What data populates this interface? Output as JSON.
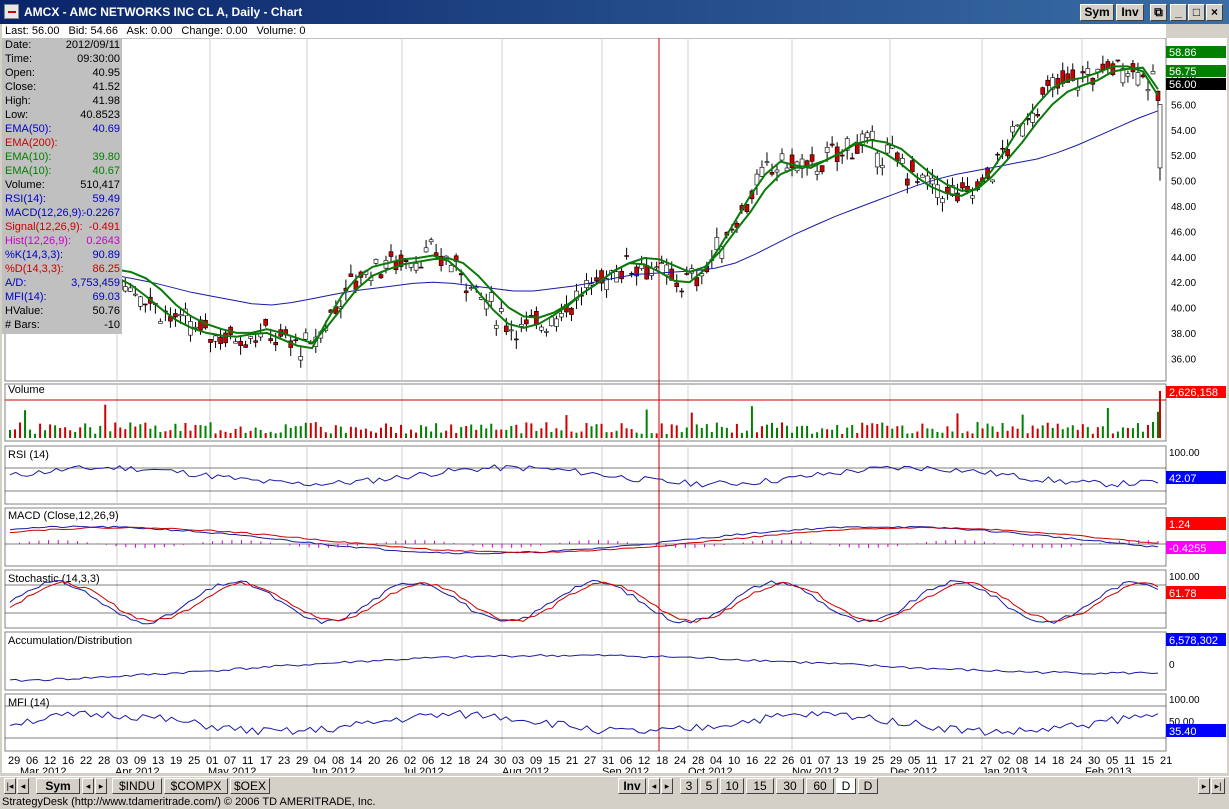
{
  "window": {
    "title": "AMCX - AMC NETWORKS INC CL A, Daily - Chart",
    "sym_button": "Sym",
    "inv_button": "Inv"
  },
  "quote_row": {
    "last": "Last: 56.00",
    "bid": "Bid: 54.66",
    "ask": "Ask: 0.00",
    "change": "Change: 0.00",
    "volume": "Volume: 0"
  },
  "data_panel": [
    {
      "label": "Date:",
      "value": "2012/09/11",
      "color": "#000000"
    },
    {
      "label": "Time:",
      "value": "09:30:00",
      "color": "#000000"
    },
    {
      "label": "Open:",
      "value": "40.95",
      "color": "#000000"
    },
    {
      "label": "Close:",
      "value": "41.52",
      "color": "#000000"
    },
    {
      "label": "High:",
      "value": "41.98",
      "color": "#000000"
    },
    {
      "label": "Low:",
      "value": "40.8523",
      "color": "#000000"
    },
    {
      "label": "EMA(50):",
      "value": "40.69",
      "color": "#0000cc"
    },
    {
      "label": "EMA(200):",
      "value": "",
      "color": "#cc0000"
    },
    {
      "label": "EMA(10):",
      "value": "39.80",
      "color": "#008000"
    },
    {
      "label": "EMA(10):",
      "value": "40.67",
      "color": "#008000"
    },
    {
      "label": "Volume:",
      "value": "510,417",
      "color": "#000000"
    },
    {
      "label": "RSI(14):",
      "value": "59.49",
      "color": "#0000cc"
    },
    {
      "label": "MACD(12,26,9):",
      "value": "-0.2267",
      "color": "#0000cc"
    },
    {
      "label": "Signal(12,26,9):",
      "value": "-0.491",
      "color": "#cc0000"
    },
    {
      "label": "Hist(12,26,9):",
      "value": "0.2643",
      "color": "#cc00cc"
    },
    {
      "label": "%K(14,3,3):",
      "value": "90.89",
      "color": "#0000cc"
    },
    {
      "label": "%D(14,3,3):",
      "value": "86.25",
      "color": "#cc0000"
    },
    {
      "label": "A/D:",
      "value": "3,753,459",
      "color": "#0000cc"
    },
    {
      "label": "MFI(14):",
      "value": "69.03",
      "color": "#0000cc"
    },
    {
      "label": "HValue:",
      "value": "50.76",
      "color": "#000000"
    },
    {
      "label": "# Bars:",
      "value": "-10",
      "color": "#000000"
    }
  ],
  "price_axis": {
    "ticks": [
      "60.00",
      "58.00",
      "56.00",
      "54.00",
      "52.00",
      "50.00",
      "48.00",
      "46.00",
      "44.00",
      "42.00",
      "40.00",
      "38.00",
      "36.00"
    ],
    "badges": [
      {
        "text": "58.86",
        "bg": "#008000"
      },
      {
        "text": "56.75",
        "bg": "#008000"
      },
      {
        "text": "56.00",
        "bg": "#000000"
      }
    ]
  },
  "panels": {
    "volume": {
      "title": "Volume",
      "badge": "2,626,158",
      "badge_bg": "#ff0000"
    },
    "rsi": {
      "title": "RSI (14)",
      "tick_top": "100.00",
      "badge": "42.07",
      "badge_bg": "#0000ff"
    },
    "macd": {
      "title": "MACD (Close,12,26,9)",
      "badge1": "1.24",
      "badge1_bg": "#ff0000",
      "badge2": "-0.4255",
      "badge2_bg": "#ff00ff"
    },
    "stoch": {
      "title": "Stochastic (14,3,3)",
      "tick_top": "100.00",
      "badge": "61.78",
      "badge_bg": "#ff0000"
    },
    "ad": {
      "title": "Accumulation/Distribution",
      "badge": "6,578,302",
      "badge_bg": "#0000ff",
      "tick_zero": "0"
    },
    "mfi": {
      "title": "MFI (14)",
      "tick_top": "100.00",
      "tick_mid": "50.00",
      "badge": "35.40",
      "badge_bg": "#0000ff"
    }
  },
  "date_axis": {
    "days": [
      "29",
      "06",
      "12",
      "16",
      "22",
      "28",
      "03",
      "09",
      "13",
      "19",
      "25",
      "01",
      "07",
      "11",
      "17",
      "23",
      "29",
      "04",
      "08",
      "14",
      "20",
      "26",
      "02",
      "06",
      "12",
      "18",
      "24",
      "30",
      "03",
      "09",
      "15",
      "21",
      "27",
      "31",
      "06",
      "12",
      "18",
      "24",
      "28",
      "04",
      "10",
      "16",
      "22",
      "26",
      "01",
      "07",
      "13",
      "19",
      "25",
      "29",
      "05",
      "11",
      "17",
      "21",
      "27",
      "02",
      "08",
      "14",
      "18",
      "24",
      "30",
      "05",
      "11",
      "15",
      "21"
    ],
    "months": [
      {
        "label": "Mar 2012"
      },
      {
        "label": "Apr 2012"
      },
      {
        "label": "May 2012"
      },
      {
        "label": "Jun 2012"
      },
      {
        "label": "Jul 2012"
      },
      {
        "label": "Aug 2012"
      },
      {
        "label": "Sep 2012"
      },
      {
        "label": "Oct 2012"
      },
      {
        "label": "Nov 2012"
      },
      {
        "label": "Dec 2012"
      },
      {
        "label": "Jan 2013"
      },
      {
        "label": "Feb 2013"
      }
    ]
  },
  "bottom_tabs": {
    "left": [
      "Sym",
      "$INDU",
      "$COMPX",
      "$OEX"
    ],
    "inv": "Inv",
    "periods": [
      "3",
      "5",
      "10",
      "15",
      "30",
      "60",
      "D",
      "D"
    ]
  },
  "statusbar": {
    "text": "StrategyDesk (http://www.tdameritrade.com/) © 2006 TD AMERITRADE, Inc."
  },
  "chart_data": {
    "type": "line",
    "title": "AMCX - AMC NETWORKS INC CL A, Daily",
    "ylim": [
      35,
      61
    ],
    "series": [
      {
        "name": "EMA(50)",
        "values": [
          43.5,
          43.4,
          43.2,
          43.0,
          42.8,
          42.6,
          42.3,
          42.0,
          41.6,
          41.2,
          40.9,
          40.6,
          40.3,
          40.2,
          40.4,
          40.7,
          41.0,
          41.3,
          41.5,
          41.7,
          41.9,
          42.0,
          41.9,
          41.7,
          41.5,
          41.3,
          41.3,
          41.5,
          41.7,
          42.0,
          42.3,
          42.6,
          42.7,
          42.8,
          42.9,
          43.1,
          43.5,
          44.2,
          45.0,
          45.8,
          46.5,
          47.2,
          47.8,
          48.4,
          49.0,
          49.6,
          50.1,
          50.5,
          50.8,
          51.1,
          51.4,
          51.7,
          52.2,
          52.8,
          53.5,
          54.2,
          54.9,
          55.5
        ]
      },
      {
        "name": "EMA(10)",
        "values": [
          44.8,
          44.5,
          44.0,
          43.6,
          43.4,
          43.3,
          43.2,
          43.0,
          42.8,
          42.3,
          41.4,
          40.2,
          39.3,
          38.7,
          38.3,
          38.0,
          38.0,
          38.3,
          38.0,
          37.6,
          37.2,
          38.5,
          40.0,
          41.5,
          42.5,
          43.0,
          43.4,
          43.6,
          43.8,
          43.9,
          43.5,
          42.5,
          41.2,
          40.0,
          39.3,
          39.2,
          39.6,
          40.3,
          41.2,
          42.0,
          42.9,
          43.5,
          43.9,
          43.8,
          43.3,
          42.8,
          43.2,
          44.4,
          46.0,
          47.5,
          49.3,
          50.5,
          51.0,
          51.2,
          51.6,
          52.2,
          52.9,
          53.2,
          53.0,
          52.5,
          51.5,
          50.5,
          49.7,
          49.2,
          49.3,
          50.3,
          51.6,
          53.0,
          54.6,
          56.0,
          57.0,
          57.5,
          57.9,
          58.6,
          58.8,
          58.9,
          57.2
        ]
      },
      {
        "name": "EMA(10) fast",
        "values": [
          44.3,
          44.0,
          43.4,
          43.1,
          42.9,
          42.8,
          42.8,
          42.4,
          41.8,
          40.9,
          39.9,
          39.0,
          38.4,
          38.0,
          37.8,
          37.7,
          37.9,
          38.0,
          37.5,
          37.0,
          36.8,
          39.0,
          41.0,
          42.4,
          43.2,
          43.5,
          43.8,
          43.9,
          44.1,
          43.7,
          42.7,
          41.2,
          39.8,
          38.7,
          38.4,
          38.7,
          39.4,
          40.2,
          41.2,
          42.0,
          42.9,
          43.5,
          43.4,
          42.8,
          42.1,
          42.0,
          43.0,
          44.8,
          46.8,
          48.8,
          50.5,
          51.5,
          51.2,
          51.0,
          51.6,
          52.2,
          53.0,
          52.6,
          52.1,
          51.3,
          50.3,
          49.5,
          49.0,
          48.8,
          49.4,
          50.8,
          52.6,
          54.5,
          56.0,
          57.3,
          57.9,
          58.1,
          58.5,
          59.0,
          59.0,
          58.6,
          56.7
        ]
      }
    ]
  }
}
